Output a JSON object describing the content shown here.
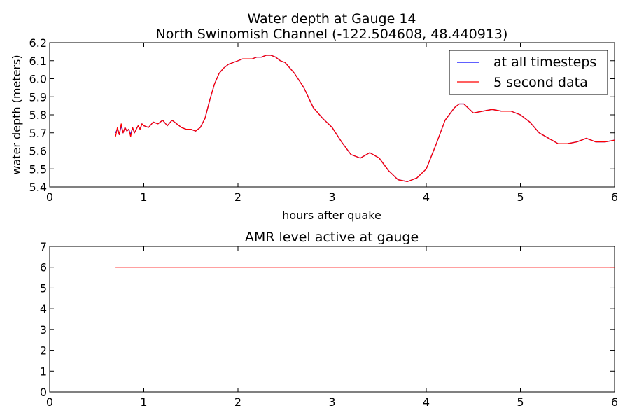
{
  "colors": {
    "all_timesteps": "#0000ff",
    "five_second": "#ff0000",
    "amr": "#ff0000",
    "axes": "#000000",
    "background": "#ffffff"
  },
  "chart_data": [
    {
      "type": "line",
      "title": "Water depth at Gauge 14",
      "subtitle": "North Swinomish Channel  (-122.504608, 48.440913)",
      "xlabel": "hours after quake",
      "ylabel": "water depth (meters)",
      "xlim": [
        0,
        6
      ],
      "ylim": [
        5.4,
        6.2
      ],
      "xticks": [
        "0",
        "1",
        "2",
        "3",
        "4",
        "5",
        "6"
      ],
      "yticks": [
        "5.4",
        "5.5",
        "5.6",
        "5.7",
        "5.8",
        "5.9",
        "6.0",
        "6.1",
        "6.2"
      ],
      "grid": false,
      "legend_position": "top-right",
      "series": [
        {
          "name": "at all timesteps",
          "x": [
            0.7,
            0.72,
            0.74,
            0.76,
            0.78,
            0.8,
            0.82,
            0.84,
            0.86,
            0.88,
            0.9,
            0.92,
            0.94,
            0.96,
            0.98,
            1.0,
            1.05,
            1.1,
            1.15,
            1.2,
            1.25,
            1.3,
            1.35,
            1.4,
            1.45,
            1.5,
            1.55,
            1.6,
            1.65,
            1.7,
            1.75,
            1.8,
            1.85,
            1.9,
            1.95,
            2.0,
            2.05,
            2.1,
            2.15,
            2.2,
            2.25,
            2.3,
            2.35,
            2.4,
            2.45,
            2.5,
            2.6,
            2.7,
            2.8,
            2.9,
            3.0,
            3.1,
            3.2,
            3.3,
            3.4,
            3.5,
            3.6,
            3.7,
            3.8,
            3.9,
            4.0,
            4.1,
            4.2,
            4.3,
            4.35,
            4.4,
            4.5,
            4.6,
            4.7,
            4.8,
            4.9,
            5.0,
            5.1,
            5.2,
            5.3,
            5.4,
            5.5,
            5.6,
            5.7,
            5.8,
            5.9,
            6.0
          ],
          "y": [
            5.7,
            5.72,
            5.69,
            5.74,
            5.7,
            5.73,
            5.71,
            5.72,
            5.69,
            5.73,
            5.7,
            5.72,
            5.74,
            5.72,
            5.75,
            5.74,
            5.73,
            5.76,
            5.75,
            5.77,
            5.74,
            5.77,
            5.75,
            5.73,
            5.72,
            5.72,
            5.71,
            5.73,
            5.78,
            5.88,
            5.97,
            6.03,
            6.06,
            6.08,
            6.09,
            6.1,
            6.11,
            6.11,
            6.11,
            6.12,
            6.12,
            6.13,
            6.13,
            6.12,
            6.1,
            6.09,
            6.03,
            5.95,
            5.84,
            5.78,
            5.73,
            5.65,
            5.58,
            5.56,
            5.59,
            5.56,
            5.49,
            5.44,
            5.43,
            5.45,
            5.5,
            5.63,
            5.77,
            5.84,
            5.86,
            5.86,
            5.81,
            5.82,
            5.83,
            5.82,
            5.82,
            5.8,
            5.76,
            5.7,
            5.67,
            5.64,
            5.64,
            5.65,
            5.67,
            5.65,
            5.65,
            5.66
          ]
        },
        {
          "name": "5 second data",
          "x": [
            0.7,
            0.72,
            0.74,
            0.76,
            0.78,
            0.8,
            0.82,
            0.84,
            0.86,
            0.88,
            0.9,
            0.92,
            0.94,
            0.96,
            0.98,
            1.0,
            1.05,
            1.1,
            1.15,
            1.2,
            1.25,
            1.3,
            1.35,
            1.4,
            1.45,
            1.5,
            1.55,
            1.6,
            1.65,
            1.7,
            1.75,
            1.8,
            1.85,
            1.9,
            1.95,
            2.0,
            2.05,
            2.1,
            2.15,
            2.2,
            2.25,
            2.3,
            2.35,
            2.4,
            2.45,
            2.5,
            2.6,
            2.7,
            2.8,
            2.9,
            3.0,
            3.1,
            3.2,
            3.3,
            3.4,
            3.5,
            3.6,
            3.7,
            3.8,
            3.9,
            4.0,
            4.1,
            4.2,
            4.3,
            4.35,
            4.4,
            4.5,
            4.6,
            4.7,
            4.8,
            4.9,
            5.0,
            5.1,
            5.2,
            5.3,
            5.4,
            5.5,
            5.6,
            5.7,
            5.8,
            5.9,
            6.0
          ],
          "y": [
            5.68,
            5.73,
            5.69,
            5.75,
            5.7,
            5.73,
            5.71,
            5.72,
            5.68,
            5.73,
            5.7,
            5.72,
            5.74,
            5.72,
            5.75,
            5.74,
            5.73,
            5.76,
            5.75,
            5.77,
            5.74,
            5.77,
            5.75,
            5.73,
            5.72,
            5.72,
            5.71,
            5.73,
            5.78,
            5.88,
            5.97,
            6.03,
            6.06,
            6.08,
            6.09,
            6.1,
            6.11,
            6.11,
            6.11,
            6.12,
            6.12,
            6.13,
            6.13,
            6.12,
            6.1,
            6.09,
            6.03,
            5.95,
            5.84,
            5.78,
            5.73,
            5.65,
            5.58,
            5.56,
            5.59,
            5.56,
            5.49,
            5.44,
            5.43,
            5.45,
            5.5,
            5.63,
            5.77,
            5.84,
            5.86,
            5.86,
            5.81,
            5.82,
            5.83,
            5.82,
            5.82,
            5.8,
            5.76,
            5.7,
            5.67,
            5.64,
            5.64,
            5.65,
            5.67,
            5.65,
            5.65,
            5.66
          ]
        }
      ]
    },
    {
      "type": "line",
      "title": "AMR level active at gauge",
      "xlabel": "",
      "ylabel": "",
      "xlim": [
        0,
        6
      ],
      "ylim": [
        0,
        7
      ],
      "xticks": [
        "0",
        "1",
        "2",
        "3",
        "4",
        "5",
        "6"
      ],
      "yticks": [
        "0",
        "1",
        "2",
        "3",
        "4",
        "5",
        "6",
        "7"
      ],
      "grid": false,
      "series": [
        {
          "x": [
            0.7,
            6.0
          ],
          "y": [
            6,
            6
          ]
        }
      ]
    }
  ]
}
